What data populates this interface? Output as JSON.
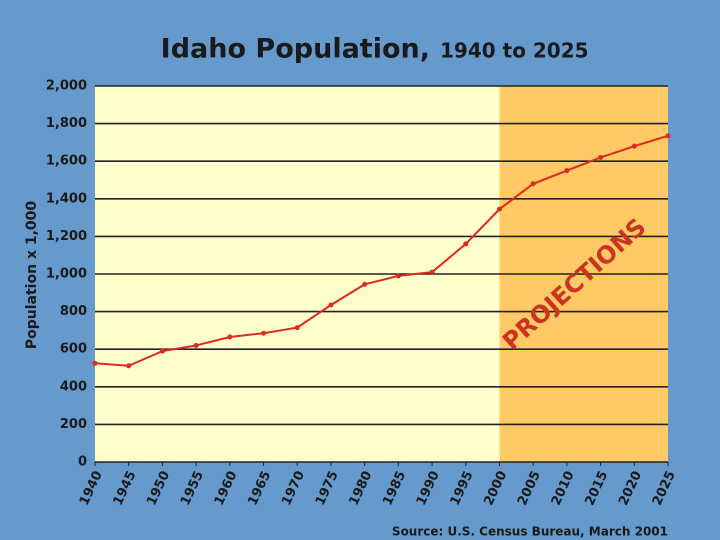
{
  "chart_data": {
    "type": "line",
    "title": "Idaho Population,",
    "subtitle": "1940 to 2025",
    "y_label": "Population x 1,000",
    "source": "Source: U.S. Census Bureau, March 2001",
    "shaded_region": {
      "from": 2000,
      "to": 2025,
      "label": "PROJECTIONS"
    },
    "x": [
      1940,
      1945,
      1950,
      1955,
      1960,
      1965,
      1970,
      1975,
      1980,
      1985,
      1990,
      1995,
      2000,
      2005,
      2010,
      2015,
      2020,
      2025
    ],
    "values": [
      525,
      512,
      590,
      620,
      665,
      685,
      715,
      835,
      945,
      990,
      1010,
      1160,
      1345,
      1480,
      1550,
      1620,
      1680,
      1735
    ],
    "color": "#dd2a1f",
    "xlim": [
      1940,
      2025
    ],
    "xticks": [
      1940,
      1945,
      1950,
      1955,
      1960,
      1965,
      1970,
      1975,
      1980,
      1985,
      1990,
      1995,
      2000,
      2005,
      2010,
      2015,
      2020,
      2025
    ],
    "ylim": [
      0,
      2000
    ],
    "yticks": [
      0,
      200,
      400,
      600,
      800,
      {
        "value": 1000,
        "label": "1,000"
      },
      {
        "value": 1200,
        "label": "1,200"
      },
      {
        "value": 1400,
        "label": "1,400"
      },
      {
        "value": 1600,
        "label": "1,600"
      },
      {
        "value": 1800,
        "label": "1,800"
      },
      {
        "value": 2000,
        "label": "2,000"
      }
    ],
    "grid": true
  }
}
